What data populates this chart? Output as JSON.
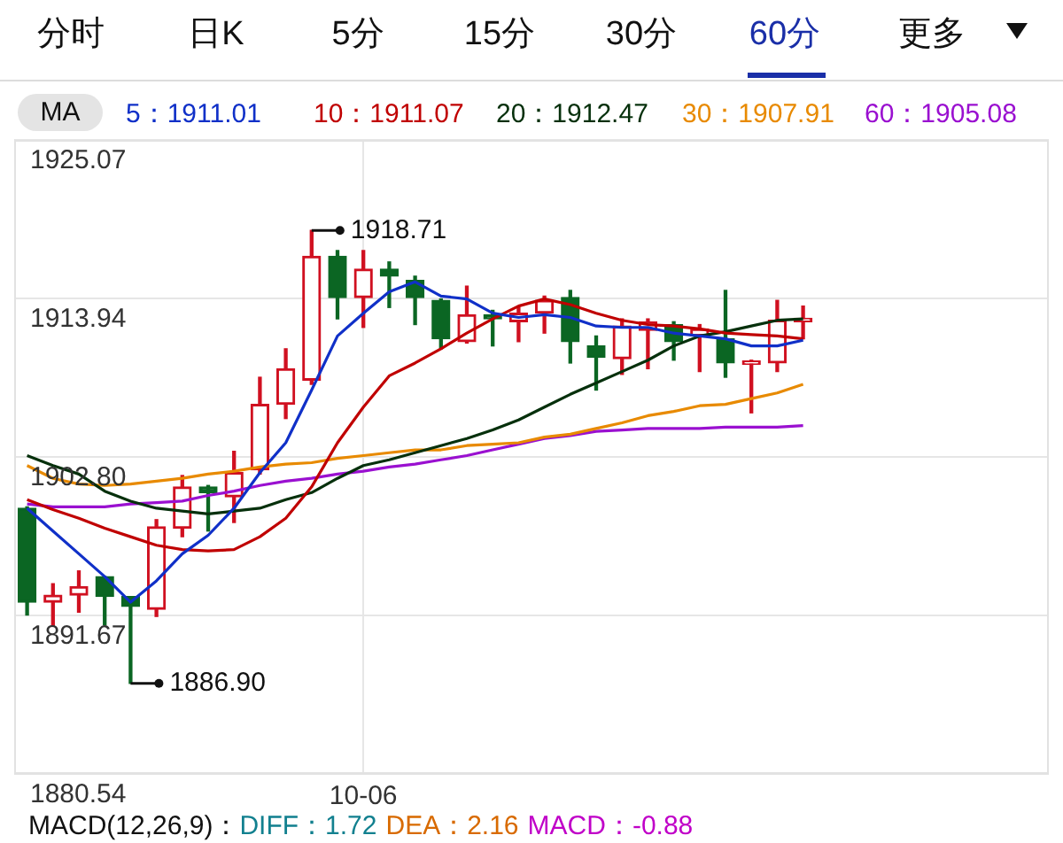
{
  "chart_data": {
    "type": "candlestick",
    "legend_title": "MA",
    "legend": "top left",
    "grid": true,
    "marker": "none",
    "line_style": "solid",
    "categories": [
      null,
      null,
      null,
      null,
      null,
      null,
      null,
      null,
      null,
      null,
      null,
      null,
      null,
      "10-06",
      null,
      null,
      null,
      null,
      null,
      null,
      null,
      null,
      null,
      null,
      null,
      null,
      null,
      null,
      null,
      null,
      null,
      null,
      null,
      null,
      null,
      null,
      null,
      null,
      null,
      null
    ],
    "ohlc": [
      [
        1899.2,
        1899.3,
        1891.7,
        1892.6
      ],
      [
        1892.6,
        1893.9,
        1890.9,
        1893.1
      ],
      [
        1893.1,
        1894.8,
        1891.9,
        1893.7
      ],
      [
        1894.4,
        1894.4,
        1891.0,
        1893.0
      ],
      [
        1893.0,
        1893.0,
        1886.9,
        1892.3
      ],
      [
        1892.1,
        1898.4,
        1891.6,
        1897.9
      ],
      [
        1897.8,
        1901.5,
        1897.2,
        1900.7
      ],
      [
        1900.7,
        1900.8,
        1897.6,
        1900.3
      ],
      [
        1900.0,
        1903.2,
        1898.2,
        1901.7
      ],
      [
        1901.9,
        1908.4,
        1901.6,
        1906.5
      ],
      [
        1906.5,
        1910.4,
        1905.5,
        1909.0
      ],
      [
        1908.2,
        1918.71,
        1907.9,
        1916.9
      ],
      [
        1916.9,
        1917.3,
        1912.5,
        1914.0
      ],
      [
        1914.0,
        1917.3,
        1911.9,
        1916.0
      ],
      [
        1916.0,
        1916.5,
        1913.3,
        1915.5
      ],
      [
        1915.2,
        1915.5,
        1912.1,
        1914.0
      ],
      [
        1913.8,
        1913.9,
        1910.4,
        1911.1
      ],
      [
        1910.9,
        1914.8,
        1910.8,
        1912.8
      ],
      [
        1912.8,
        1913.1,
        1910.6,
        1912.5
      ],
      [
        1912.3,
        1913.3,
        1910.9,
        1912.9
      ],
      [
        1912.9,
        1914.1,
        1911.5,
        1913.8
      ],
      [
        1914.0,
        1914.5,
        1909.4,
        1910.9
      ],
      [
        1910.6,
        1911.3,
        1907.5,
        1909.8
      ],
      [
        1909.7,
        1912.5,
        1908.6,
        1912.0
      ],
      [
        1911.7,
        1912.5,
        1909.0,
        1912.3
      ],
      [
        1912.1,
        1912.3,
        1909.6,
        1910.9
      ],
      [
        1911.3,
        1912.1,
        1908.8,
        1911.8
      ],
      [
        1911.1,
        1914.5,
        1908.4,
        1909.4
      ],
      [
        1909.3,
        1909.6,
        1905.9,
        1909.5
      ],
      [
        1909.4,
        1913.8,
        1908.8,
        1912.4
      ],
      [
        1912.3,
        1913.4,
        1911.1,
        1912.5
      ],
      null,
      null,
      null,
      null,
      null,
      null,
      null,
      null,
      null
    ],
    "colors": [
      "#0b6623",
      "#d01020",
      "#d01020",
      "#0b6623",
      "#0b6623",
      "#d01020",
      "#d01020",
      "#0b6623",
      "#d01020",
      "#d01020",
      "#d01020",
      "#d01020",
      "#0b6623",
      "#d01020",
      "#0b6623",
      "#0b6623",
      "#0b6623",
      "#d01020",
      "#0b6623",
      "#d01020",
      "#d01020",
      "#0b6623",
      "#0b6623",
      "#d01020",
      "#d01020",
      "#0b6623",
      "#d01020",
      "#0b6623",
      "#d01020",
      "#d01020",
      "#d01020",
      null,
      null,
      null,
      null,
      null,
      null,
      null,
      null,
      null
    ],
    "series": [
      {
        "type": "line",
        "name": "5：1911.01",
        "color": "#1030c8",
        "values": [
          1899.2,
          1897.6,
          1896.0,
          1894.4,
          1892.6,
          1894.1,
          1896.0,
          1897.3,
          1899.2,
          1901.7,
          1903.8,
          1907.5,
          1911.3,
          1912.9,
          1914.4,
          1915.1,
          1914.1,
          1913.9,
          1912.9,
          1912.6,
          1912.8,
          1912.6,
          1912.0,
          1911.9,
          1911.9,
          1911.5,
          1911.3,
          1911.1,
          1910.6,
          1910.6,
          1911.0,
          null,
          null,
          null,
          null,
          null,
          null,
          null,
          null,
          null
        ]
      },
      {
        "type": "line",
        "name": "10：1911.07",
        "color": "#c00000",
        "values": [
          1899.8,
          1899.1,
          1898.5,
          1897.8,
          1897.2,
          1896.6,
          1896.3,
          1896.2,
          1896.3,
          1897.2,
          1898.5,
          1900.7,
          1903.8,
          1906.3,
          1908.5,
          1909.4,
          1910.4,
          1911.5,
          1912.5,
          1913.4,
          1913.9,
          1913.5,
          1912.9,
          1912.4,
          1912.1,
          1912.0,
          1911.8,
          1911.5,
          1911.4,
          1911.3,
          1911.1,
          null,
          null,
          null,
          null,
          null,
          null,
          null,
          null,
          null
        ]
      },
      {
        "type": "line",
        "name": "20：1912.47",
        "color": "#06300c",
        "values": [
          1902.9,
          1902.2,
          1901.6,
          1900.4,
          1899.7,
          1899.2,
          1899.0,
          1898.8,
          1899.0,
          1899.2,
          1899.8,
          1900.3,
          1901.3,
          1902.2,
          1902.6,
          1903.1,
          1903.6,
          1904.1,
          1904.7,
          1905.4,
          1906.3,
          1907.2,
          1908.0,
          1908.8,
          1909.6,
          1910.6,
          1911.3,
          1911.6,
          1912.0,
          1912.4,
          1912.5,
          null,
          null,
          null,
          null,
          null,
          null,
          null,
          null,
          null
        ]
      },
      {
        "type": "line",
        "name": "30：1907.91",
        "color": "#e88a00",
        "values": [
          1902.2,
          1901.3,
          1900.9,
          1900.8,
          1900.9,
          1901.1,
          1901.3,
          1901.6,
          1901.8,
          1902.1,
          1902.3,
          1902.4,
          1902.7,
          1902.9,
          1903.1,
          1903.3,
          1903.3,
          1903.6,
          1903.7,
          1903.8,
          1904.2,
          1904.4,
          1904.8,
          1905.2,
          1905.7,
          1906.0,
          1906.4,
          1906.5,
          1906.9,
          1907.3,
          1907.9,
          null,
          null,
          null,
          null,
          null,
          null,
          null,
          null,
          null
        ]
      },
      {
        "type": "line",
        "name": "60：1905.08",
        "color": "#9a10d0",
        "values": [
          1899.5,
          1899.3,
          1899.3,
          1899.3,
          1899.5,
          1899.6,
          1899.7,
          1900.1,
          1900.4,
          1900.8,
          1901.1,
          1901.3,
          1901.6,
          1901.8,
          1902.1,
          1902.3,
          1902.6,
          1902.9,
          1903.3,
          1903.7,
          1904.1,
          1904.3,
          1904.6,
          1904.7,
          1904.8,
          1904.8,
          1904.8,
          1904.9,
          1904.9,
          1904.9,
          1905.0,
          null,
          null,
          null,
          null,
          null,
          null,
          null,
          null,
          null
        ]
      }
    ],
    "ylim": [
      1880.54,
      1925.07
    ],
    "yticks": [
      1925.07,
      1913.94,
      {
        "value": 1902.8,
        "label": "1902.80"
      },
      1891.67,
      1880.54
    ],
    "annotations": [
      "分时",
      "日K",
      "5分",
      "15分",
      "30分",
      "60分",
      "更多",
      "MACD(12,26,9)：",
      "DIFF：1.72",
      "DEA：2.16",
      "MACD：-0.88",
      "1918.71",
      "1886.90"
    ]
  }
}
